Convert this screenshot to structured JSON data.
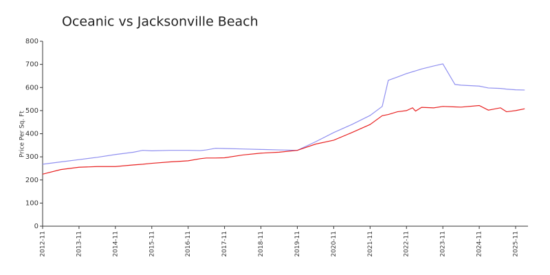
{
  "chart_data": {
    "type": "line",
    "title": "Oceanic vs Jacksonville Beach",
    "ylabel": "Price Per Sq. Ft",
    "x": [
      "2012-11",
      "2013-05",
      "2013-11",
      "2014-05",
      "2014-11",
      "2015-05",
      "2015-08",
      "2015-11",
      "2016-05",
      "2016-11",
      "2017-03",
      "2017-05",
      "2017-08",
      "2017-11",
      "2018-05",
      "2018-11",
      "2019-05",
      "2019-11",
      "2020-05",
      "2020-11",
      "2021-05",
      "2021-11",
      "2022-03",
      "2022-05",
      "2022-08",
      "2022-11",
      "2023-01",
      "2023-02",
      "2023-04",
      "2023-08",
      "2023-11",
      "2024-03",
      "2024-05",
      "2024-11",
      "2025-02",
      "2025-06",
      "2025-08",
      "2025-11",
      "2026-02"
    ],
    "series": [
      {
        "color": "#8f8ff0",
        "values": [
          268,
          278,
          288,
          298,
          310,
          320,
          328,
          326,
          328,
          328,
          327,
          330,
          337,
          336,
          334,
          332,
          330,
          328,
          365,
          405,
          440,
          479,
          518,
          631,
          645,
          660,
          668,
          672,
          680,
          693,
          702,
          613,
          610,
          606,
          598,
          596,
          593,
          590,
          589
        ]
      },
      {
        "color": "#e82020",
        "values": [
          225,
          245,
          255,
          258,
          258,
          265,
          268,
          272,
          278,
          283,
          292,
          295,
          295,
          296,
          308,
          316,
          320,
          328,
          355,
          372,
          405,
          440,
          478,
          483,
          495,
          500,
          512,
          498,
          514,
          512,
          518,
          516,
          515,
          522,
          502,
          512,
          495,
          500,
          508
        ]
      }
    ],
    "xticks": [
      "2012-11",
      "2013-11",
      "2014-11",
      "2015-11",
      "2016-11",
      "2017-11",
      "2018-11",
      "2019-11",
      "2020-11",
      "2021-11",
      "2022-11",
      "2023-11",
      "2024-11",
      "2025-11"
    ],
    "ylim": [
      0,
      800
    ],
    "yticks": [
      0,
      100,
      200,
      300,
      400,
      500,
      600,
      700,
      800
    ]
  }
}
